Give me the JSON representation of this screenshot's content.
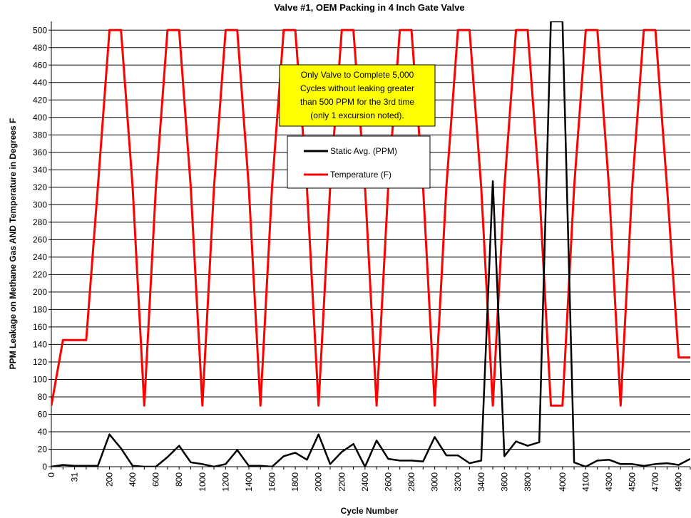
{
  "chart_data": {
    "type": "line",
    "title": "Valve #1, OEM Packing in 4 Inch Gate Valve",
    "xlabel": "Cycle Number",
    "ylabel": "PPM Leakage on Methane Gas AND Temperature in Degrees F",
    "ylim": [
      0,
      510
    ],
    "yticks": [
      0,
      20,
      40,
      60,
      80,
      100,
      120,
      140,
      160,
      180,
      200,
      220,
      240,
      260,
      280,
      300,
      320,
      340,
      360,
      380,
      400,
      420,
      440,
      460,
      480,
      500
    ],
    "grid": true,
    "legend_placement": "center",
    "x_tick_labels": [
      "0",
      "31",
      "200",
      "400",
      "600",
      "800",
      "1000",
      "1200",
      "1400",
      "1600",
      "1800",
      "2000",
      "2200",
      "2400",
      "2600",
      "2800",
      "3000",
      "3200",
      "3400",
      "3600",
      "3800",
      "4000",
      "4100",
      "4300",
      "4500",
      "4700",
      "4900"
    ],
    "x": [
      "0",
      "10",
      "31",
      "50",
      "100",
      "200",
      "300",
      "400",
      "500",
      "600",
      "700",
      "800",
      "900",
      "1000",
      "1100",
      "1200",
      "1300",
      "1400",
      "1500",
      "1600",
      "1700",
      "1800",
      "1900",
      "2000",
      "2100",
      "2200",
      "2300",
      "2400",
      "2500",
      "2600",
      "2700",
      "2800",
      "2900",
      "3000",
      "3100",
      "3200",
      "3300",
      "3400",
      "3500",
      "3600",
      "3700",
      "3800",
      "3900",
      "3950",
      "4000",
      "4050",
      "4100",
      "4200",
      "4300",
      "4400",
      "4500",
      "4600",
      "4700",
      "4800",
      "4900",
      "5000"
    ],
    "series": [
      {
        "name": "Static Avg. (PPM)",
        "color": "#000000",
        "values": [
          0,
          2,
          1,
          1,
          1,
          37,
          21,
          1,
          0,
          0,
          11,
          24,
          5,
          3,
          0,
          3,
          19,
          1,
          1,
          0,
          12,
          16,
          8,
          37,
          3,
          17,
          26,
          0,
          30,
          9,
          7,
          7,
          6,
          34,
          13,
          13,
          4,
          7,
          327,
          12,
          29,
          24,
          28,
          510,
          510,
          5,
          0,
          7,
          8,
          3,
          3,
          1,
          3,
          4,
          2,
          9
        ]
      },
      {
        "name": "Temperature (F)",
        "color": "#ff0000",
        "values": [
          70,
          145,
          145,
          145,
          320,
          500,
          500,
          320,
          70,
          320,
          500,
          500,
          320,
          70,
          320,
          500,
          500,
          320,
          70,
          320,
          500,
          500,
          320,
          70,
          320,
          500,
          500,
          320,
          70,
          320,
          500,
          500,
          320,
          70,
          320,
          500,
          500,
          320,
          70,
          320,
          500,
          500,
          320,
          70,
          70,
          320,
          500,
          500,
          320,
          70,
          320,
          500,
          500,
          320,
          125,
          125
        ]
      }
    ],
    "annotation": "Only Valve to Complete 5,000 Cycles without leaking greater than 500 PPM for the 3rd time (only 1 excursion noted)."
  },
  "note_lines": [
    "Only Valve to Complete 5,000",
    "Cycles without leaking greater",
    "than 500 PPM for the 3rd time",
    "(only 1 excursion noted)."
  ],
  "note_bg": "#ffff00"
}
